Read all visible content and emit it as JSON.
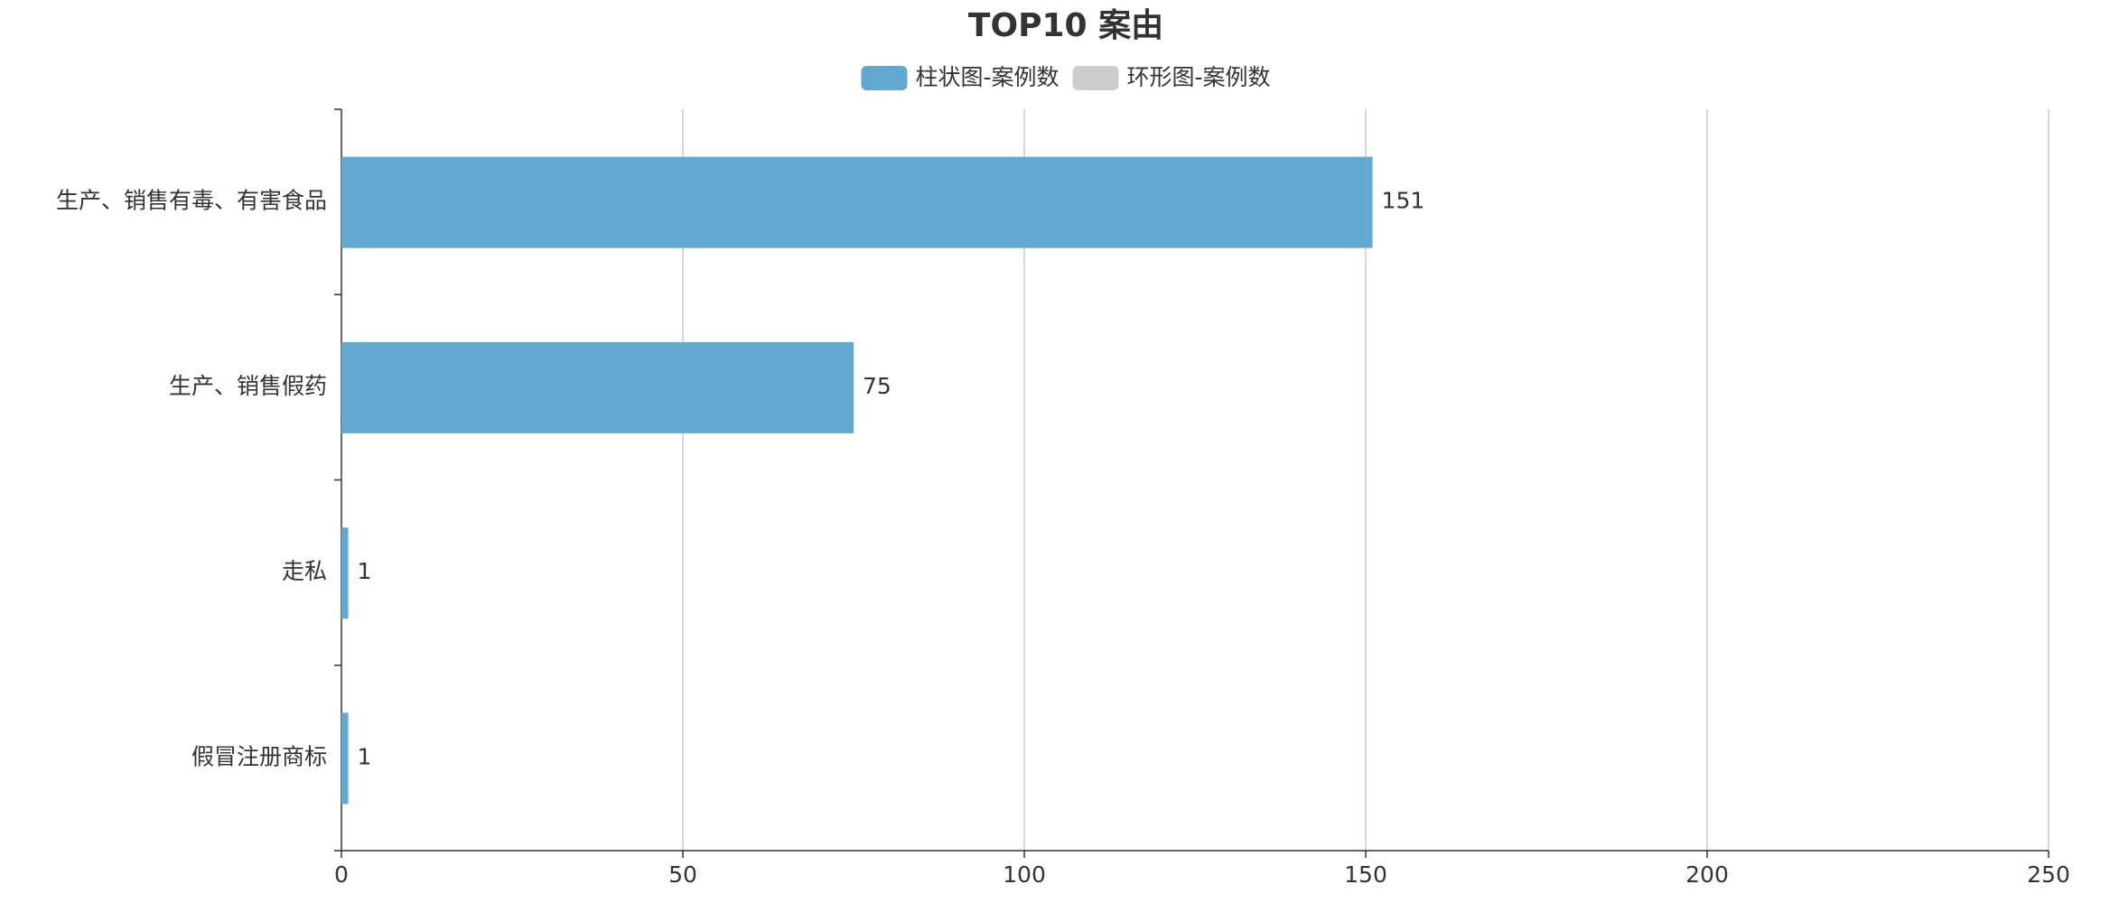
{
  "chart_data": {
    "type": "hbar",
    "title": "TOP10 案由",
    "legend": [
      {
        "name": "柱状图-案例数",
        "color": "#62a9d1",
        "active": true
      },
      {
        "name": "环形图-案例数",
        "color": "#cccccc",
        "active": false
      }
    ],
    "categories": [
      "生产、销售有毒、有害食品",
      "生产、销售假药",
      "走私",
      "假冒注册商标"
    ],
    "values": [
      151,
      75,
      1,
      1
    ],
    "color": "#62a9d1",
    "xlim": [
      0,
      250
    ],
    "xticks": [
      0,
      50,
      100,
      150,
      200,
      250
    ],
    "grid": true
  }
}
